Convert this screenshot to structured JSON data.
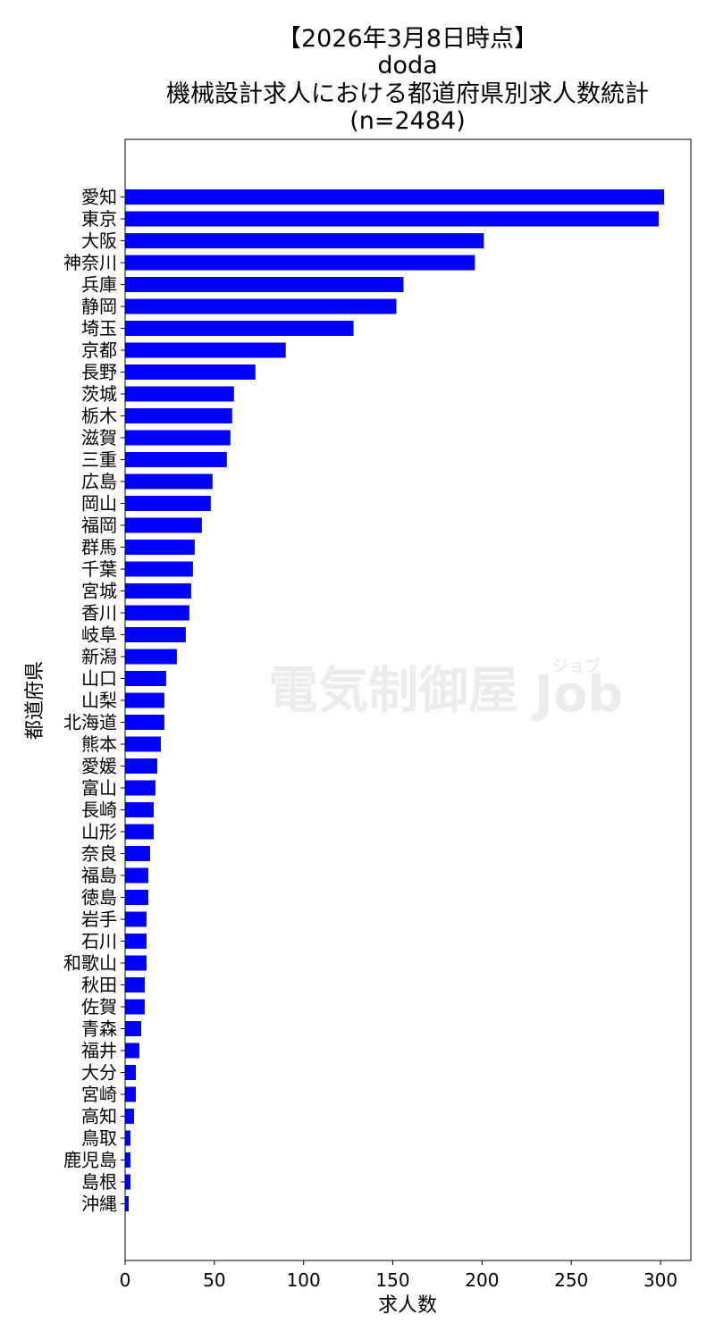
{
  "chart_data": {
    "type": "bar",
    "orientation": "horizontal",
    "title_lines": [
      "【2026年3月8日時点】",
      "doda",
      "機械設計求人における都道府県別求人数統計",
      "(n=2484)"
    ],
    "xlabel": "求人数",
    "ylabel": "都道府県",
    "xlim": [
      0,
      317
    ],
    "xticks": [
      0,
      50,
      100,
      150,
      200,
      250,
      300
    ],
    "grid": false,
    "bar_color": "#0000ff",
    "categories": [
      "愛知",
      "東京",
      "大阪",
      "神奈川",
      "兵庫",
      "静岡",
      "埼玉",
      "京都",
      "長野",
      "茨城",
      "栃木",
      "滋賀",
      "三重",
      "広島",
      "岡山",
      "福岡",
      "群馬",
      "千葉",
      "宮城",
      "香川",
      "岐阜",
      "新潟",
      "山口",
      "山梨",
      "北海道",
      "熊本",
      "愛媛",
      "富山",
      "長崎",
      "山形",
      "奈良",
      "福島",
      "徳島",
      "岩手",
      "石川",
      "和歌山",
      "秋田",
      "佐賀",
      "青森",
      "福井",
      "大分",
      "宮崎",
      "高知",
      "鳥取",
      "鹿児島",
      "島根",
      "沖縄"
    ],
    "values": [
      302,
      299,
      201,
      196,
      156,
      152,
      128,
      90,
      73,
      61,
      60,
      59,
      57,
      49,
      48,
      43,
      39,
      38,
      37,
      36,
      34,
      29,
      23,
      22,
      22,
      20,
      18,
      17,
      16,
      16,
      14,
      13,
      13,
      12,
      12,
      12,
      11,
      11,
      9,
      8,
      6,
      6,
      5,
      3,
      3,
      3,
      2
    ]
  },
  "watermark": {
    "text": "電気制御屋",
    "job": "Job",
    "ruby": "ジョブ"
  }
}
